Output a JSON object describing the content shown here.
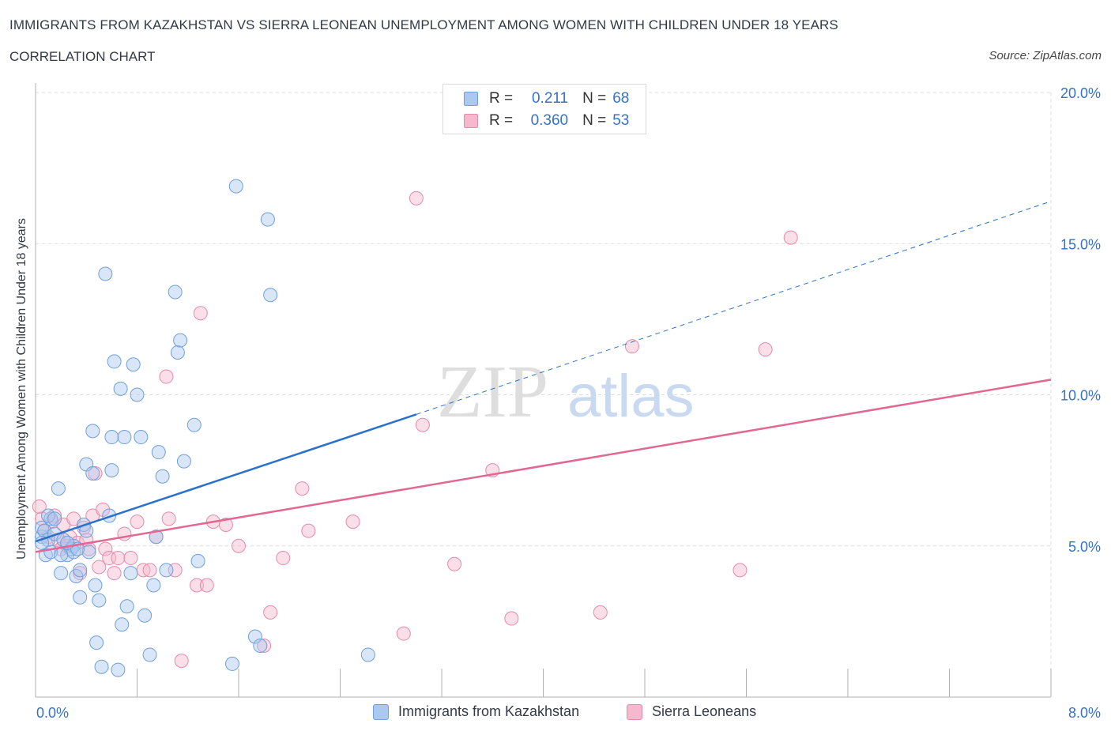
{
  "header": {
    "title": "IMMIGRANTS FROM KAZAKHSTAN VS SIERRA LEONEAN UNEMPLOYMENT AMONG WOMEN WITH CHILDREN UNDER 18 YEARS",
    "subtitle": "CORRELATION CHART",
    "source": "Source: ZipAtlas.com"
  },
  "watermark": {
    "zip": "ZIP",
    "atlas": "atlas"
  },
  "legend": {
    "r_label": "R =",
    "n_label": "N =",
    "series": [
      {
        "r": "0.211",
        "n": "68"
      },
      {
        "r": "0.360",
        "n": "53"
      }
    ]
  },
  "colors": {
    "kazakhstan_fill": "#aac8f0",
    "kazakhstan_stroke": "#6f9fdc",
    "kazakhstan_line": "#2a72c9",
    "sierra_fill": "#f6b8cc",
    "sierra_stroke": "#e68aa8",
    "sierra_line": "#e06892",
    "axis_label": "#3572c4",
    "grid": "#dcdcdc"
  },
  "chart_data": {
    "type": "scatter",
    "title": "IMMIGRANTS FROM KAZAKHSTAN VS SIERRA LEONEAN UNEMPLOYMENT AMONG WOMEN WITH CHILDREN UNDER 18 YEARS",
    "xlabel": "",
    "ylabel": "Unemployment Among Women with Children Under 18 years",
    "xlim": [
      0,
      8
    ],
    "ylim": [
      0,
      20
    ],
    "x_tick_labels": [
      "0.0%",
      "8.0%"
    ],
    "y_ticks": [
      5,
      10,
      15,
      20
    ],
    "y_tick_labels": [
      "5.0%",
      "10.0%",
      "15.0%",
      "20.0%"
    ],
    "grid": true,
    "legend_position": "top-center",
    "series": [
      {
        "name": "Immigrants from Kazakhstan",
        "r": 0.211,
        "n": 68,
        "trend": {
          "x0": 0.0,
          "y0": 5.15,
          "x1": 3.0,
          "y1": 9.35,
          "dashed_to_x": 8.0,
          "dashed_to_y": 16.4
        },
        "points": [
          [
            0.05,
            5.3
          ],
          [
            0.05,
            5.6
          ],
          [
            0.07,
            5.5
          ],
          [
            0.08,
            4.7
          ],
          [
            0.1,
            5.2
          ],
          [
            0.12,
            4.8
          ],
          [
            0.12,
            5.9
          ],
          [
            0.15,
            5.4
          ],
          [
            0.18,
            6.9
          ],
          [
            0.2,
            4.1
          ],
          [
            0.22,
            5.2
          ],
          [
            0.25,
            4.7
          ],
          [
            0.28,
            4.9
          ],
          [
            0.3,
            5.0
          ],
          [
            0.32,
            4.0
          ],
          [
            0.35,
            4.2
          ],
          [
            0.35,
            3.3
          ],
          [
            0.38,
            5.7
          ],
          [
            0.4,
            7.7
          ],
          [
            0.42,
            4.8
          ],
          [
            0.45,
            8.8
          ],
          [
            0.47,
            3.7
          ],
          [
            0.48,
            1.8
          ],
          [
            0.5,
            3.2
          ],
          [
            0.52,
            1.0
          ],
          [
            0.55,
            14.0
          ],
          [
            0.58,
            6.0
          ],
          [
            0.6,
            7.5
          ],
          [
            0.62,
            11.1
          ],
          [
            0.65,
            0.9
          ],
          [
            0.67,
            10.2
          ],
          [
            0.68,
            2.4
          ],
          [
            0.7,
            8.6
          ],
          [
            0.72,
            3.0
          ],
          [
            0.75,
            4.1
          ],
          [
            0.77,
            11.0
          ],
          [
            0.8,
            10.0
          ],
          [
            0.83,
            8.6
          ],
          [
            0.86,
            2.7
          ],
          [
            0.9,
            1.4
          ],
          [
            0.93,
            3.7
          ],
          [
            0.95,
            5.3
          ],
          [
            0.97,
            8.1
          ],
          [
            1.0,
            7.3
          ],
          [
            1.03,
            4.2
          ],
          [
            1.1,
            13.4
          ],
          [
            1.12,
            11.4
          ],
          [
            1.14,
            11.8
          ],
          [
            1.17,
            7.8
          ],
          [
            1.25,
            9.0
          ],
          [
            1.28,
            4.5
          ],
          [
            1.58,
            16.9
          ],
          [
            1.73,
            2.0
          ],
          [
            1.77,
            1.7
          ],
          [
            1.83,
            15.8
          ],
          [
            1.85,
            13.3
          ],
          [
            2.62,
            1.4
          ],
          [
            1.55,
            1.1
          ],
          [
            0.3,
            4.8
          ],
          [
            0.4,
            5.5
          ],
          [
            0.6,
            8.6
          ],
          [
            0.1,
            6.0
          ],
          [
            0.05,
            5.1
          ],
          [
            0.15,
            5.9
          ],
          [
            0.45,
            7.4
          ],
          [
            0.33,
            4.9
          ],
          [
            0.2,
            4.7
          ],
          [
            0.25,
            5.1
          ]
        ]
      },
      {
        "name": "Sierra Leoneans",
        "r": 0.36,
        "n": 53,
        "trend": {
          "x0": 0.0,
          "y0": 4.8,
          "x1": 8.0,
          "y1": 10.5
        },
        "points": [
          [
            0.03,
            6.3
          ],
          [
            0.05,
            5.9
          ],
          [
            0.07,
            5.5
          ],
          [
            0.1,
            5.3
          ],
          [
            0.13,
            5.8
          ],
          [
            0.15,
            6.0
          ],
          [
            0.18,
            5.2
          ],
          [
            0.2,
            4.9
          ],
          [
            0.22,
            5.7
          ],
          [
            0.25,
            5.0
          ],
          [
            0.27,
            5.3
          ],
          [
            0.3,
            5.9
          ],
          [
            0.33,
            5.1
          ],
          [
            0.35,
            4.1
          ],
          [
            0.38,
            5.6
          ],
          [
            0.4,
            5.2
          ],
          [
            0.42,
            4.9
          ],
          [
            0.45,
            6.0
          ],
          [
            0.47,
            7.4
          ],
          [
            0.5,
            4.3
          ],
          [
            0.53,
            6.2
          ],
          [
            0.55,
            4.9
          ],
          [
            0.58,
            4.6
          ],
          [
            0.62,
            4.1
          ],
          [
            0.65,
            4.6
          ],
          [
            0.7,
            5.4
          ],
          [
            0.75,
            4.6
          ],
          [
            0.8,
            5.8
          ],
          [
            0.85,
            4.2
          ],
          [
            0.9,
            4.2
          ],
          [
            0.95,
            5.3
          ],
          [
            1.03,
            10.6
          ],
          [
            1.05,
            5.9
          ],
          [
            1.1,
            4.2
          ],
          [
            1.15,
            1.2
          ],
          [
            1.27,
            3.7
          ],
          [
            1.3,
            12.7
          ],
          [
            1.35,
            3.7
          ],
          [
            1.4,
            5.8
          ],
          [
            1.5,
            5.7
          ],
          [
            1.6,
            5.0
          ],
          [
            1.8,
            1.7
          ],
          [
            1.85,
            2.8
          ],
          [
            1.95,
            4.6
          ],
          [
            2.1,
            6.9
          ],
          [
            2.15,
            5.5
          ],
          [
            2.5,
            5.8
          ],
          [
            2.9,
            2.1
          ],
          [
            3.0,
            16.5
          ],
          [
            3.05,
            9.0
          ],
          [
            3.3,
            4.4
          ],
          [
            3.6,
            7.5
          ],
          [
            3.75,
            2.6
          ]
        ],
        "extra_points": [
          [
            4.45,
            2.8
          ],
          [
            4.7,
            11.6
          ],
          [
            5.55,
            4.2
          ],
          [
            5.75,
            11.5
          ],
          [
            5.95,
            15.2
          ]
        ]
      }
    ]
  },
  "bottom_legend": {
    "items": [
      "Immigrants from Kazakhstan",
      "Sierra Leoneans"
    ]
  }
}
